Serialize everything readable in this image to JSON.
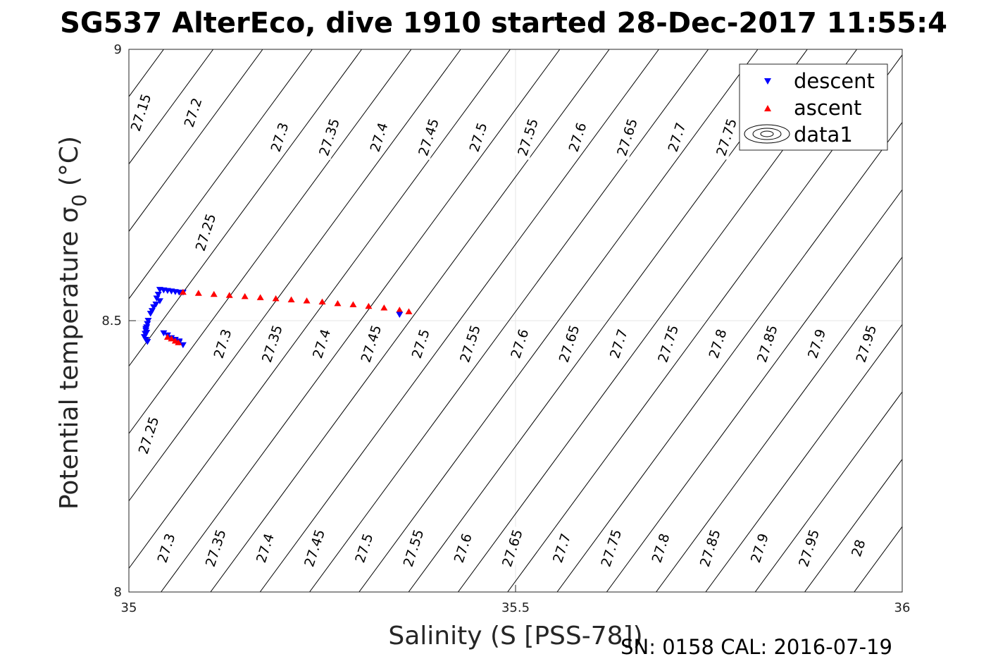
{
  "chart_data": {
    "type": "scatter",
    "title": "SG537 AlterEco, dive 1910 started 28-Dec-2017 11:55:4",
    "xlabel": "Salinity (S [PSS-78])",
    "ylabel_main": "Potential temperature ",
    "ylabel_sigma": "σ",
    "ylabel_sub": "0",
    "ylabel_unit": " (°C)",
    "xlim": [
      35,
      36
    ],
    "ylim": [
      8,
      9
    ],
    "xticks": [
      "35",
      "35.5",
      "36"
    ],
    "yticks": [
      "8",
      "8.5",
      "9"
    ],
    "grid": true,
    "legend_position": "top-right",
    "legend": [
      "descent",
      "ascent",
      "data1"
    ],
    "footer": "SN: 0158  CAL: 2016-07-19",
    "colors": {
      "descent": "#0000ff",
      "ascent": "#ff0000",
      "contour": "#000000",
      "grid": "#e6e6e6"
    },
    "contour_labels": {
      "top": [
        "27.15",
        "27.2",
        "27.3",
        "27.35",
        "27.4",
        "27.45",
        "27.5",
        "27.55",
        "27.6",
        "27.65",
        "27.7",
        "27.75"
      ],
      "upper_left": [
        "27.25"
      ],
      "middle": [
        "27.3",
        "27.35",
        "27.4",
        "27.45",
        "27.5",
        "27.55",
        "27.6",
        "27.65",
        "27.7",
        "27.75",
        "27.8",
        "27.85",
        "27.9",
        "27.95"
      ],
      "lower_left": [
        "27.25"
      ],
      "bottom": [
        "27.3",
        "27.35",
        "27.4",
        "27.45",
        "27.5",
        "27.55",
        "27.6",
        "27.65",
        "27.7",
        "27.75",
        "27.8",
        "27.85",
        "27.9",
        "27.95",
        "28"
      ]
    },
    "series": [
      {
        "name": "descent",
        "marker": "triangle-down",
        "points": [
          [
            35.04,
            8.557
          ],
          [
            35.045,
            8.556
          ],
          [
            35.05,
            8.555
          ],
          [
            35.055,
            8.554
          ],
          [
            35.06,
            8.553
          ],
          [
            35.065,
            8.552
          ],
          [
            35.07,
            8.552
          ],
          [
            35.038,
            8.548
          ],
          [
            35.036,
            8.541
          ],
          [
            35.04,
            8.536
          ],
          [
            35.035,
            8.53
          ],
          [
            35.032,
            8.525
          ],
          [
            35.03,
            8.518
          ],
          [
            35.028,
            8.513
          ],
          [
            35.025,
            8.5
          ],
          [
            35.024,
            8.494
          ],
          [
            35.023,
            8.488
          ],
          [
            35.022,
            8.482
          ],
          [
            35.021,
            8.476
          ],
          [
            35.02,
            8.47
          ],
          [
            35.022,
            8.465
          ],
          [
            35.024,
            8.461
          ],
          [
            35.023,
            8.478
          ],
          [
            35.022,
            8.485
          ],
          [
            35.045,
            8.477
          ],
          [
            35.05,
            8.473
          ],
          [
            35.055,
            8.468
          ],
          [
            35.06,
            8.465
          ],
          [
            35.065,
            8.46
          ],
          [
            35.07,
            8.455
          ],
          [
            35.065,
            8.462
          ]
        ]
      },
      {
        "name": "ascent",
        "marker": "triangle-up",
        "points": [
          [
            35.07,
            8.553
          ],
          [
            35.09,
            8.551
          ],
          [
            35.11,
            8.549
          ],
          [
            35.13,
            8.547
          ],
          [
            35.15,
            8.545
          ],
          [
            35.17,
            8.543
          ],
          [
            35.19,
            8.541
          ],
          [
            35.21,
            8.539
          ],
          [
            35.23,
            8.537
          ],
          [
            35.25,
            8.535
          ],
          [
            35.27,
            8.532
          ],
          [
            35.29,
            8.53
          ],
          [
            35.31,
            8.527
          ],
          [
            35.33,
            8.524
          ],
          [
            35.35,
            8.52
          ],
          [
            35.362,
            8.517
          ],
          [
            35.05,
            8.47
          ],
          [
            35.055,
            8.467
          ],
          [
            35.06,
            8.463
          ],
          [
            35.064,
            8.46
          ]
        ]
      },
      {
        "name": "descent",
        "marker": "triangle-down",
        "points": [
          [
            35.35,
            8.511
          ]
        ]
      }
    ]
  }
}
